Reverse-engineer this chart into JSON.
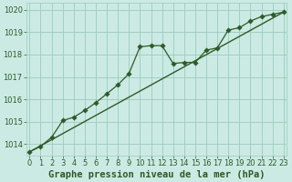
{
  "title": "Graphe pression niveau de la mer (hPa)",
  "bg_color": "#cceae4",
  "grid_color": "#99ccbb",
  "line_color": "#2d5a27",
  "marker_color": "#2d5a27",
  "xlim": [
    -0.3,
    23.3
  ],
  "ylim": [
    1013.5,
    1020.3
  ],
  "yticks": [
    1014,
    1015,
    1016,
    1017,
    1018,
    1019,
    1020
  ],
  "xticks": [
    0,
    1,
    2,
    3,
    4,
    5,
    6,
    7,
    8,
    9,
    10,
    11,
    12,
    13,
    14,
    15,
    16,
    17,
    18,
    19,
    20,
    21,
    22,
    23
  ],
  "series1_x": [
    0,
    1,
    2,
    3,
    4,
    5,
    6,
    7,
    8,
    9,
    10,
    11,
    12,
    13,
    14,
    15,
    16,
    17,
    18,
    19,
    20,
    21,
    22,
    23
  ],
  "series1_y": [
    1013.65,
    1013.9,
    1014.3,
    1015.05,
    1015.2,
    1015.5,
    1015.85,
    1016.25,
    1016.65,
    1017.15,
    1018.35,
    1018.4,
    1018.4,
    1017.6,
    1017.65,
    1017.65,
    1018.2,
    1018.3,
    1019.1,
    1019.2,
    1019.5,
    1019.7,
    1019.8,
    1019.9
  ],
  "series2_x": [
    0,
    23
  ],
  "series2_y": [
    1013.65,
    1019.9
  ],
  "title_fontsize": 7.5,
  "tick_fontsize": 6,
  "tick_color": "#2d5a27",
  "label_color": "#2d5a27"
}
